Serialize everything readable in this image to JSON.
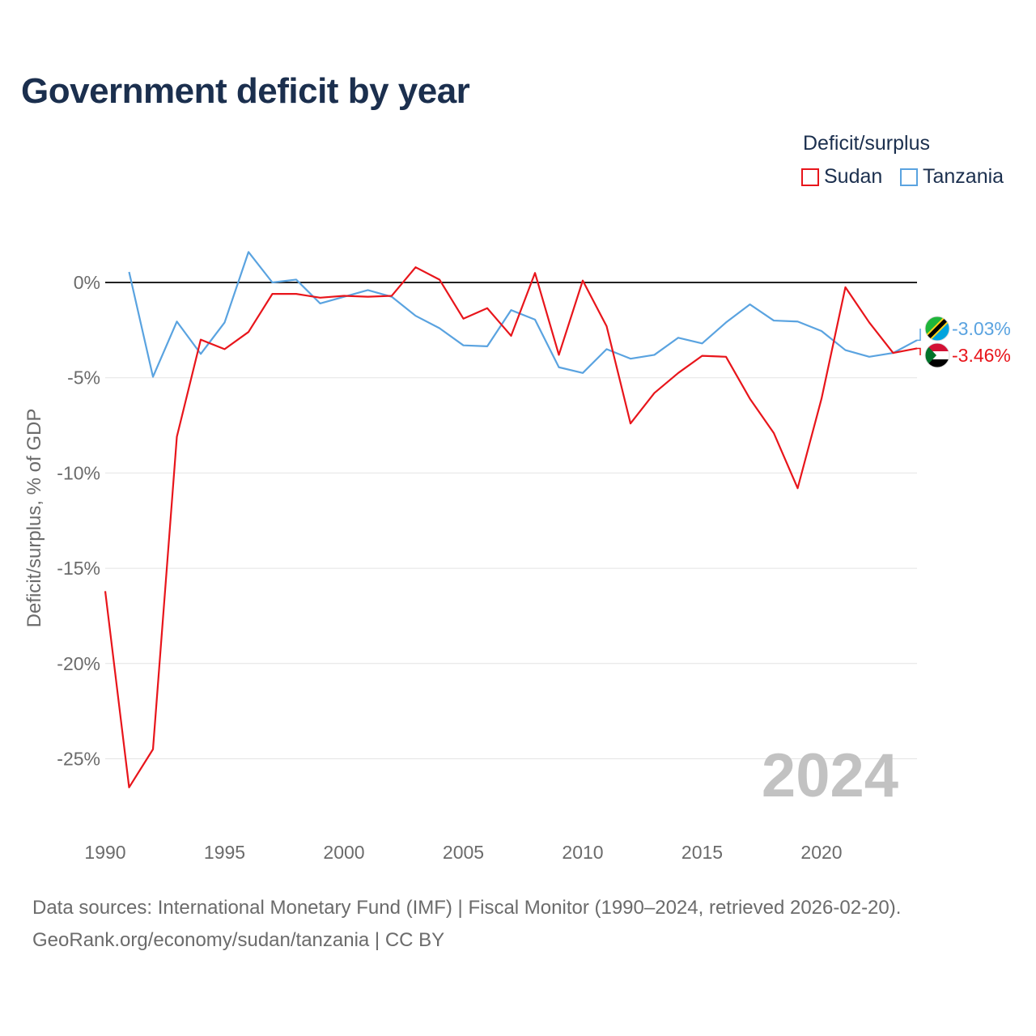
{
  "title": "Government deficit by year",
  "legend": {
    "title": "Deficit/surplus",
    "items": [
      {
        "name": "Sudan",
        "color": "#e8151b"
      },
      {
        "name": "Tanzania",
        "color": "#5aa3e0"
      }
    ]
  },
  "source": {
    "line1": "Data sources: International Monetary Fund (IMF) | Fiscal Monitor (1990–2024, retrieved 2026-02-20).",
    "line2": "GeoRank.org/economy/sudan/tanzania | CC BY"
  },
  "chart_data": {
    "type": "line",
    "ylabel": "Deficit/surplus, % of GDP",
    "xlabel": "",
    "xlim": [
      1990,
      2024
    ],
    "ylim": [
      -28,
      2.5
    ],
    "x_ticks": [
      1990,
      1995,
      2000,
      2005,
      2010,
      2015,
      2020
    ],
    "y_ticks": [
      0,
      -5,
      -10,
      -15,
      -20,
      -25
    ],
    "y_tick_labels": [
      "0%",
      "-5%",
      "-10%",
      "-15%",
      "-20%",
      "-25%"
    ],
    "watermark_year": "2024",
    "series": [
      {
        "name": "Sudan",
        "color": "#e8151b",
        "end_label": "-3.46%",
        "x": [
          1990,
          1991,
          1992,
          1993,
          1994,
          1995,
          1996,
          1997,
          1998,
          1999,
          2000,
          2001,
          2002,
          2003,
          2004,
          2005,
          2006,
          2007,
          2008,
          2009,
          2010,
          2011,
          2012,
          2013,
          2014,
          2015,
          2016,
          2017,
          2018,
          2019,
          2020,
          2021,
          2022,
          2023,
          2024
        ],
        "values": [
          -16.2,
          -26.5,
          -24.5,
          -8.1,
          -3.0,
          -3.5,
          -2.6,
          -0.6,
          -0.6,
          -0.8,
          -0.7,
          -0.75,
          -0.7,
          0.8,
          0.15,
          -1.9,
          -1.35,
          -2.8,
          0.5,
          -3.8,
          0.1,
          -2.3,
          -7.4,
          -5.8,
          -4.75,
          -3.85,
          -3.9,
          -6.1,
          -7.9,
          -10.8,
          -6.1,
          -0.25,
          -2.1,
          -3.7,
          -3.46
        ]
      },
      {
        "name": "Tanzania",
        "color": "#5aa3e0",
        "end_label": "-3.03%",
        "x": [
          1991,
          1992,
          1993,
          1994,
          1995,
          1996,
          1997,
          1998,
          1999,
          2000,
          2001,
          2002,
          2003,
          2004,
          2005,
          2006,
          2007,
          2008,
          2009,
          2010,
          2011,
          2012,
          2013,
          2014,
          2015,
          2016,
          2017,
          2018,
          2019,
          2020,
          2021,
          2022,
          2023,
          2024
        ],
        "values": [
          0.55,
          -4.95,
          -2.05,
          -3.75,
          -2.1,
          1.6,
          0.0,
          0.15,
          -1.1,
          -0.75,
          -0.4,
          -0.75,
          -1.75,
          -2.4,
          -3.3,
          -3.35,
          -1.45,
          -1.95,
          -4.45,
          -4.75,
          -3.5,
          -4.0,
          -3.8,
          -2.9,
          -3.2,
          -2.1,
          -1.15,
          -2.0,
          -2.05,
          -2.55,
          -3.55,
          -3.9,
          -3.7,
          -3.03
        ]
      }
    ]
  }
}
